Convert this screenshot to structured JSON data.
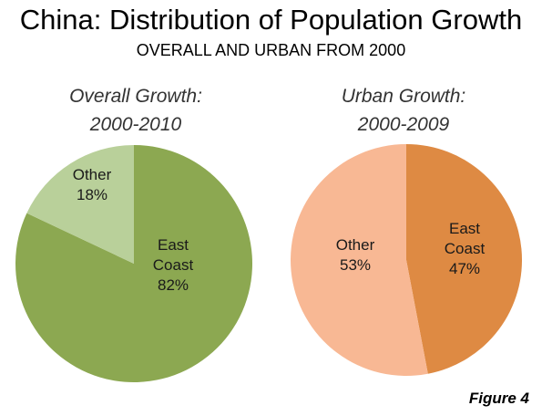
{
  "title": "China: Distribution of Population Growth",
  "subtitle": "OVERALL AND URBAN FROM 2000",
  "figure_label": "Figure 4",
  "chart_data": [
    {
      "type": "pie",
      "title": "Overall Growth:",
      "subtitle": "2000-2010",
      "slices": [
        {
          "label": "East Coast",
          "label_lines": [
            "East",
            "Coast"
          ],
          "value": 82,
          "value_label": "82%",
          "color": "#8ca851"
        },
        {
          "label": "Other",
          "label_lines": [
            "Other"
          ],
          "value": 18,
          "value_label": "18%",
          "color": "#b9d09a"
        }
      ]
    },
    {
      "type": "pie",
      "title": "Urban Growth:",
      "subtitle": "2000-2009",
      "slices": [
        {
          "label": "East Coast",
          "label_lines": [
            "East",
            "Coast"
          ],
          "value": 47,
          "value_label": "47%",
          "color": "#de8a43"
        },
        {
          "label": "Other",
          "label_lines": [
            "Other"
          ],
          "value": 53,
          "value_label": "53%",
          "color": "#f8b894"
        }
      ]
    }
  ]
}
